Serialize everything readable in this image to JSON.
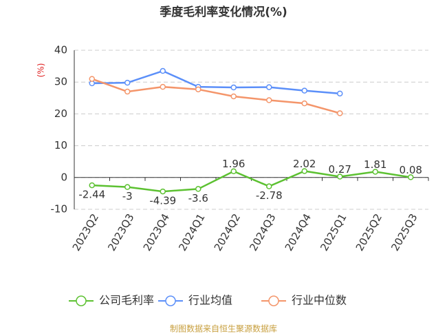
{
  "chart_data": {
    "type": "line",
    "title": "季度毛利率变化情况(%)",
    "y_label": "(%)",
    "categories": [
      "2023Q2",
      "2023Q3",
      "2023Q4",
      "2024Q1",
      "2024Q2",
      "2024Q3",
      "2024Q4",
      "2025Q1",
      "2025Q2",
      "2025Q3"
    ],
    "series": [
      {
        "name": "公司毛利率",
        "color": "#5cc131",
        "values": [
          -2.44,
          -3,
          -4.39,
          -3.6,
          1.96,
          -2.78,
          2.02,
          0.27,
          1.81,
          0.08
        ],
        "show_labels": true
      },
      {
        "name": "行业均值",
        "color": "#5b8ff9",
        "values": [
          29.6,
          29.8,
          33.5,
          28.5,
          28.3,
          28.4,
          27.3,
          26.4,
          null,
          null
        ]
      },
      {
        "name": "行业中位数",
        "color": "#f4956a",
        "values": [
          31,
          27,
          28.5,
          27.7,
          25.5,
          24.3,
          23.3,
          20.2,
          null,
          null
        ]
      }
    ],
    "ylim": [
      -10,
      40
    ],
    "yticks": [
      -10,
      0,
      10,
      20,
      30,
      40
    ],
    "grid": true,
    "source": "制图数据来自恒生聚源数据库"
  }
}
